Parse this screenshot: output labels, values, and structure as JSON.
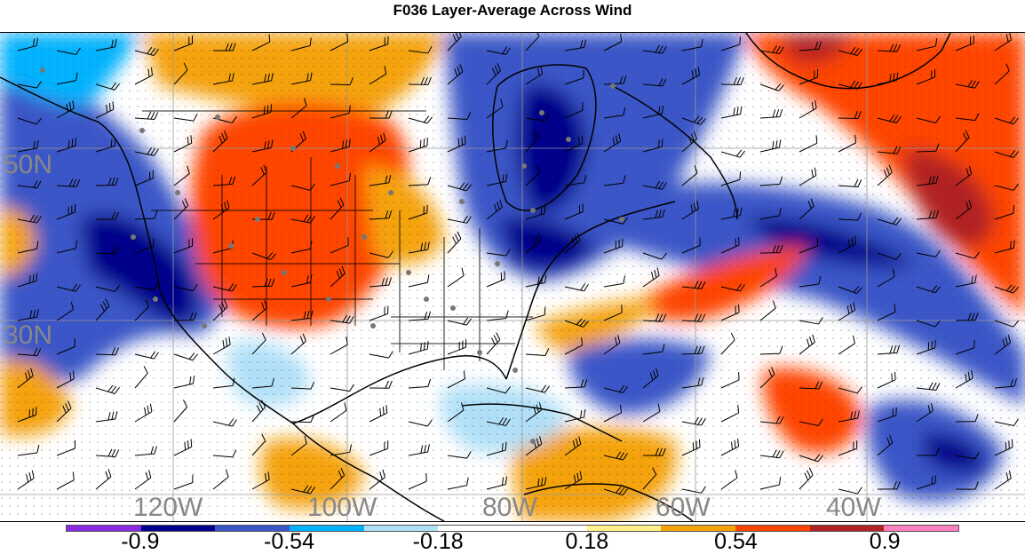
{
  "title": "F036 Layer-Average Across Wind",
  "lat_labels": [
    "50N",
    "30N"
  ],
  "lon_labels": [
    "120W",
    "100W",
    "80W",
    "60W",
    "40W"
  ],
  "colorbar": {
    "colors": [
      "#8a2be2",
      "#00008b",
      "#3a57c8",
      "#00b2ff",
      "#b0e0f8",
      "#ffffff",
      "#ffffff",
      "#fff08a",
      "#f5a30a",
      "#ff4500",
      "#b22222",
      "#ff7fbf"
    ],
    "labels": [
      "-0.9",
      "-0.54",
      "-0.18",
      "0.18",
      "0.54",
      "0.9"
    ]
  },
  "palette": {
    "dark_blue": "#00008b",
    "blue": "#3a57c8",
    "cyan": "#00b2ff",
    "light_blue": "#b0e0f8",
    "light_yellow": "#fff08a",
    "orange": "#f5a30a",
    "red_orange": "#ff4500",
    "dark_red": "#b22222"
  }
}
